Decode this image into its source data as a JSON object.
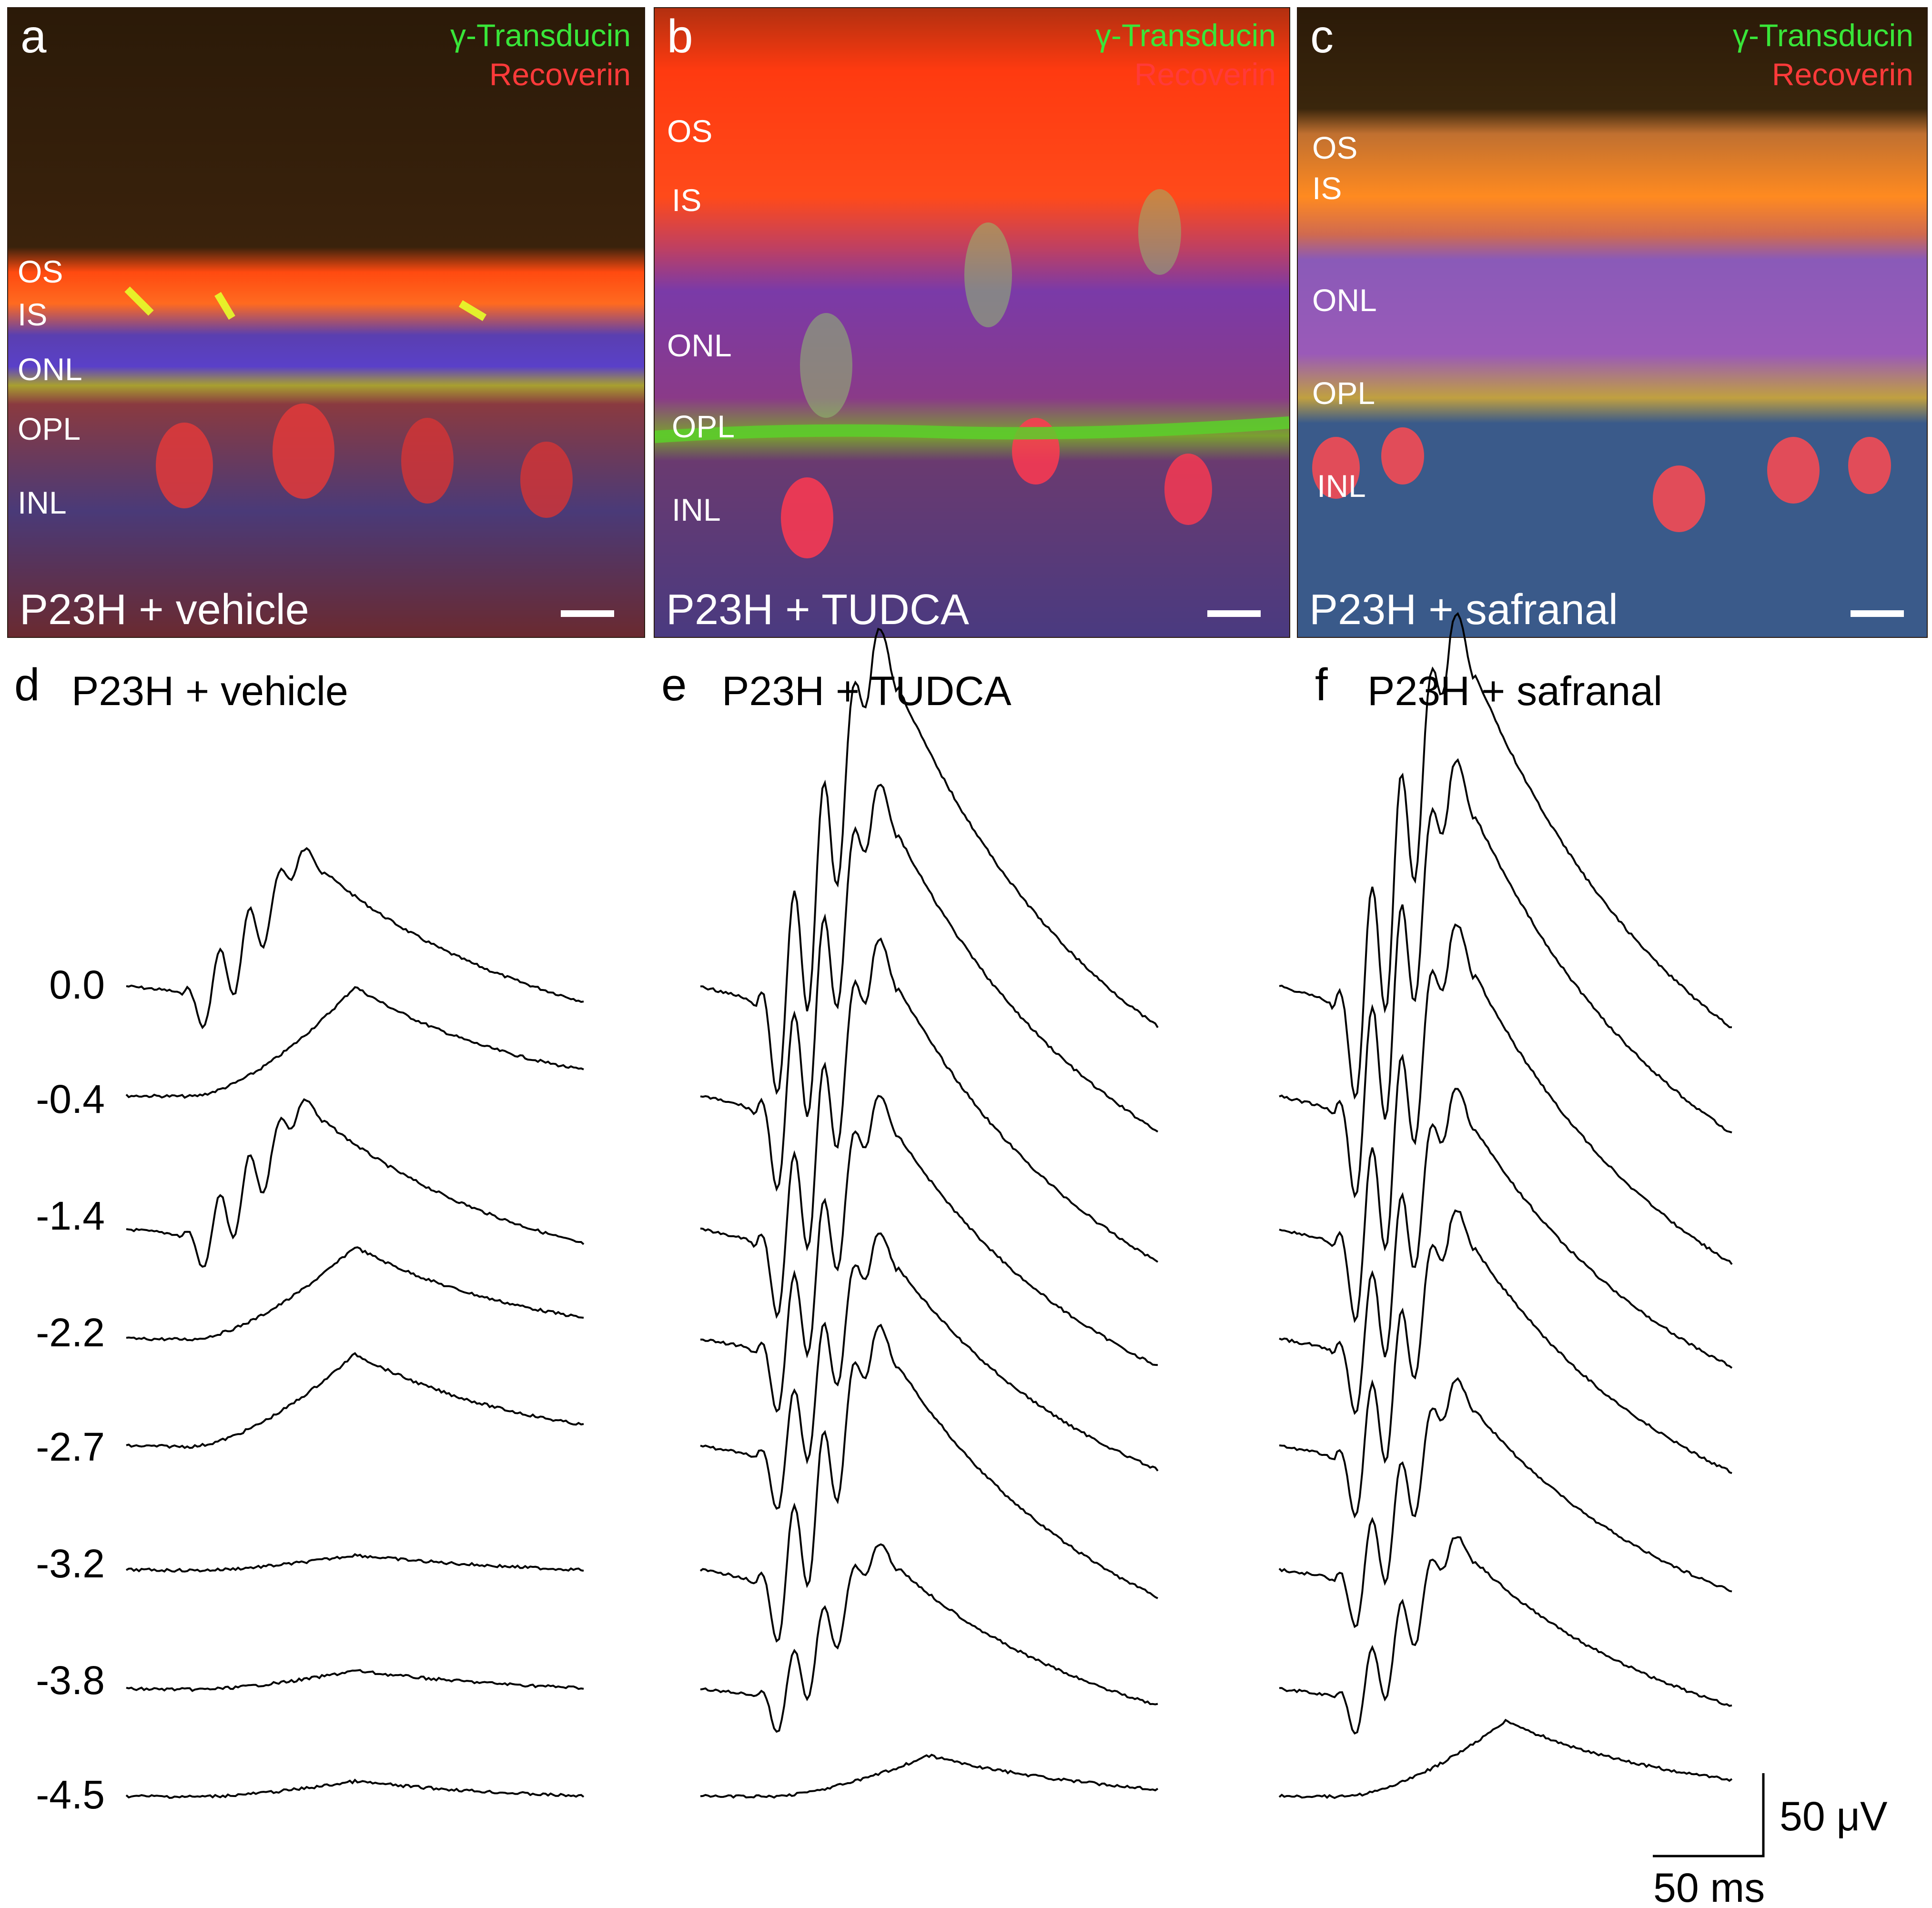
{
  "stains": {
    "green": "γ-Transducin",
    "red": "Recoverin"
  },
  "colors": {
    "green_label": "#39e639",
    "red_label": "#ff3a3a",
    "background_dark": "#2b1a08",
    "trace": "#000000"
  },
  "panels": [
    {
      "letter": "a",
      "condition": "P23H + vehicle",
      "layers": {
        "os": "OS",
        "is": "IS",
        "onl": "ONL",
        "opl": "OPL",
        "inl": "INL"
      }
    },
    {
      "letter": "b",
      "condition": "P23H + TUDCA",
      "layers": {
        "os": "OS",
        "is": "IS",
        "onl": "ONL",
        "opl": "OPL",
        "inl": "INL"
      }
    },
    {
      "letter": "c",
      "condition": "P23H + safranal",
      "layers": {
        "os": "OS",
        "is": "IS",
        "onl": "ONL",
        "opl": "OPL",
        "inl": "INL"
      }
    }
  ],
  "erg": {
    "panels": [
      {
        "letter": "d",
        "title": "P23H + vehicle"
      },
      {
        "letter": "e",
        "title": "P23H + TUDCA"
      },
      {
        "letter": "f",
        "title": "P23H + safranal"
      }
    ],
    "intensities": [
      "0.0",
      "-0.4",
      "-1.4",
      "-2.2",
      "-2.7",
      "-3.2",
      "-3.8",
      "-4.5"
    ],
    "scale": {
      "amplitude": "50 μV",
      "time": "50 ms"
    }
  },
  "chart_data": {
    "type": "line",
    "description_units": {
      "amplitude_scale": "50 μV",
      "time_scale": "50 ms"
    },
    "intensities": [
      "0.0",
      "-0.4",
      "-1.4",
      "-2.2",
      "-2.7",
      "-3.2",
      "-3.8",
      "-4.5"
    ],
    "series": [
      {
        "name": "P23H + vehicle",
        "b_wave_amplitude_uV": [
          90,
          65,
          85,
          55,
          55,
          10,
          12,
          10
        ]
      },
      {
        "name": "P23H + TUDCA",
        "b_wave_amplitude_uV": [
          235,
          205,
          190,
          160,
          140,
          160,
          95,
          25
        ]
      },
      {
        "name": "P23H + safranal",
        "b_wave_amplitude_uV": [
          245,
          220,
          200,
          165,
          155,
          125,
          100,
          45
        ]
      }
    ]
  }
}
